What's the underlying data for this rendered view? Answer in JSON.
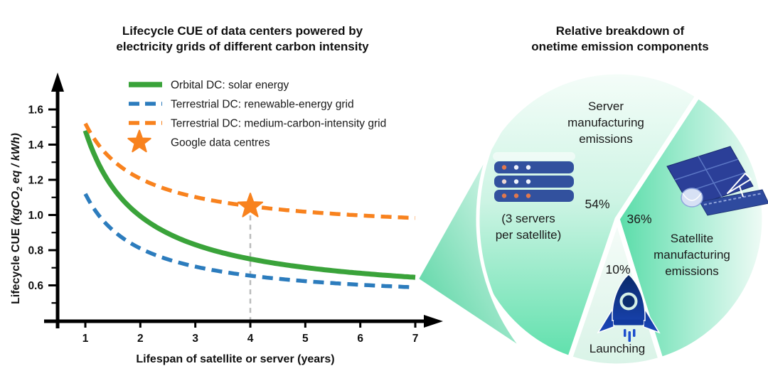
{
  "figure": {
    "left_title_lines": [
      "Lifecycle CUE of data centers powered by",
      "electricity grids of different carbon intensity"
    ],
    "right_title_lines": [
      "Relative breakdown of",
      "onetime emission components"
    ]
  },
  "chart_data": [
    {
      "type": "line",
      "title": "Lifecycle CUE of data centers powered by electricity grids of different carbon intensity",
      "xlabel": "Lifespan of satellite or server (years)",
      "ylabel": "Lifecycle CUE (kgCO2 eq / kWh)",
      "ylabel_parts": {
        "bold": "Lifecycle CUE ",
        "italic_pre": "(kgCO",
        "sub": "2",
        "italic_post": " eq / kWh)"
      },
      "xlim": [
        0.5,
        7.5
      ],
      "ylim": [
        0.45,
        1.72
      ],
      "grid": false,
      "legend_position": "top-left-inside",
      "x": [
        1,
        2,
        3,
        4,
        5,
        6,
        7
      ],
      "x_tick_labels": [
        "1",
        "2",
        "3",
        "4",
        "5",
        "6",
        "7"
      ],
      "y_tick_labels": [
        "0.6",
        "0.8",
        "1.0",
        "1.2",
        "1.4",
        "1.6"
      ],
      "series": [
        {
          "name": "Orbital DC: solar energy",
          "color": "#3aa33a",
          "style": "solid",
          "values": [
            1.48,
            0.99,
            0.83,
            0.75,
            0.7,
            0.67,
            0.65
          ],
          "model": {
            "a": 0.5067,
            "b": 0.9733
          }
        },
        {
          "name": "Terrestrial DC: renewable-energy grid",
          "color": "#2c7cbd",
          "style": "dashed",
          "values": [
            1.12,
            0.81,
            0.71,
            0.66,
            0.62,
            0.6,
            0.59
          ],
          "model": {
            "a": 0.5,
            "b": 0.62
          }
        },
        {
          "name": "Terrestrial DC: medium-carbon-intensity grid",
          "color": "#f8821e",
          "style": "dashed",
          "values": [
            1.52,
            1.21,
            1.1,
            1.05,
            1.02,
            1.0,
            0.98
          ],
          "model": {
            "a": 0.8933,
            "b": 0.6267
          }
        }
      ],
      "marker": {
        "name": "Google data centres",
        "shape": "star",
        "color": "#f8821e",
        "x": 4,
        "y": 1.05
      },
      "guide_line_x": 4,
      "guide_color": "#bbbcbc"
    },
    {
      "type": "pie",
      "title": "Relative breakdown of onetime emission components",
      "slices": [
        {
          "key": "server",
          "label": "Server manufacturing emissions",
          "label_lines": [
            "Server",
            "manufacturing",
            "emissions"
          ],
          "sublabel_lines": [
            "(3 servers",
            "per satellite)"
          ],
          "pct": 54,
          "pct_label": "54%",
          "icon": "server-rack"
        },
        {
          "key": "satellite",
          "label": "Satellite manufacturing emissions",
          "label_lines": [
            "Satellite",
            "manufacturing",
            "emissions"
          ],
          "pct": 36,
          "pct_label": "36%",
          "icon": "satellite"
        },
        {
          "key": "launching",
          "label": "Launching",
          "label_lines": [
            "Launching"
          ],
          "pct": 10,
          "pct_label": "10%",
          "icon": "rocket"
        }
      ],
      "start_angle_deg": -56.8,
      "draw_order": [
        1,
        2,
        0
      ],
      "colors": {
        "mint_deep": "#54dba6",
        "mint_light": "#f2fcf8"
      }
    }
  ]
}
